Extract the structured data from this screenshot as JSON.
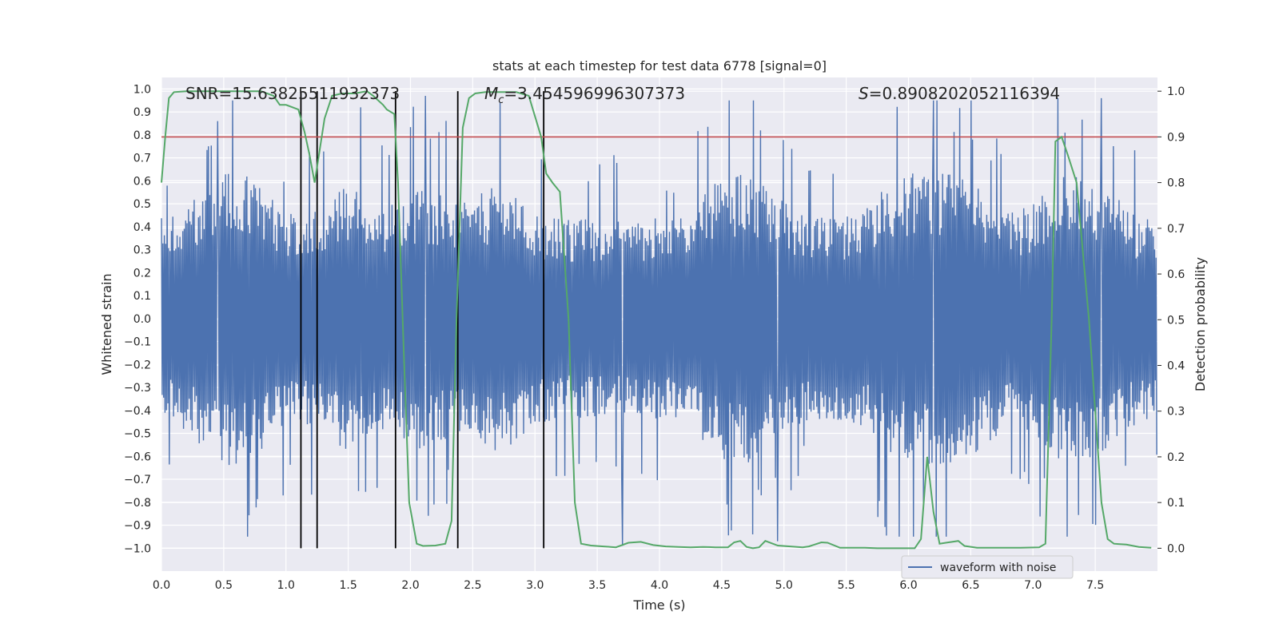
{
  "chart_data": {
    "type": "line",
    "title": "stats at each timestep for test data 6778 [signal=0]",
    "xlabel": "Time (s)",
    "ylabel": "Whitened strain",
    "y2label": "Detection probability",
    "xlim": [
      0.0,
      8.0
    ],
    "ylim": [
      -1.1,
      1.05
    ],
    "y2lim": [
      -0.05,
      1.03
    ],
    "x_ticks": [
      "0.0",
      "0.5",
      "1.0",
      "1.5",
      "2.0",
      "2.5",
      "3.0",
      "3.5",
      "4.0",
      "4.5",
      "5.0",
      "5.5",
      "6.0",
      "6.5",
      "7.0",
      "7.5"
    ],
    "y_ticks": [
      "1.0",
      "0.9",
      "0.8",
      "0.7",
      "0.6",
      "0.5",
      "0.4",
      "0.3",
      "0.2",
      "0.1",
      "0.0",
      "−0.1",
      "−0.2",
      "−0.3",
      "−0.4",
      "−0.5",
      "−0.6",
      "−0.7",
      "−0.8",
      "−0.9",
      "−1.0"
    ],
    "y2_ticks": [
      "1.0",
      "0.9",
      "0.8",
      "0.7",
      "0.6",
      "0.5",
      "0.4",
      "0.3",
      "0.2",
      "0.1",
      "0.0"
    ],
    "annotations": {
      "snr": "SNR=15.63825511932373",
      "mc_symbol": "M",
      "mc_sub": "c",
      "mc_value": "=3.454596996307373",
      "s_symbol": "S",
      "s_value": "=0.8908202052116394"
    },
    "legend": {
      "position": "lower-right",
      "entries": [
        "waveform with noise"
      ]
    },
    "threshold": {
      "y2": 0.9,
      "color": "#c44e52"
    },
    "vertical_lines": [
      1.12,
      1.25,
      1.88,
      2.38,
      3.07
    ],
    "waveform": {
      "name": "waveform with noise",
      "color": "#4c72b0",
      "n_samples": 1400,
      "envelope_peak_times": [
        0.45,
        0.7,
        1.5,
        2.1,
        2.7,
        4.5,
        4.8,
        5.9,
        6.2,
        6.5,
        7.2,
        7.5
      ],
      "peak_spikes": [
        {
          "t": 0.45,
          "v": 0.86
        },
        {
          "t": 1.6,
          "v": 0.92
        },
        {
          "t": 2.12,
          "v": 0.97
        },
        {
          "t": 2.72,
          "v": 0.94
        },
        {
          "t": 6.2,
          "v": 0.95
        },
        {
          "t": 6.5,
          "v": 0.95
        },
        {
          "t": 7.2,
          "v": 0.96
        },
        {
          "t": 7.55,
          "v": 0.96
        },
        {
          "t": 3.7,
          "v": -0.99
        },
        {
          "t": 4.95,
          "v": -0.97
        },
        {
          "t": 4.75,
          "v": -0.94
        }
      ]
    },
    "series": [
      {
        "name": "detection probability",
        "color": "#55a868",
        "x": [
          0.0,
          0.03,
          0.06,
          0.1,
          0.2,
          0.4,
          0.6,
          0.8,
          0.9,
          0.95,
          1.0,
          1.1,
          1.15,
          1.19,
          1.23,
          1.27,
          1.31,
          1.37,
          1.45,
          1.55,
          1.65,
          1.7,
          1.78,
          1.81,
          1.87,
          1.9,
          1.95,
          1.99,
          2.05,
          2.1,
          2.2,
          2.28,
          2.33,
          2.37,
          2.42,
          2.47,
          2.52,
          2.6,
          2.72,
          2.85,
          2.95,
          3.05,
          3.09,
          3.14,
          3.2,
          3.27,
          3.32,
          3.37,
          3.45,
          3.55,
          3.65,
          3.75,
          3.85,
          3.95,
          4.05,
          4.15,
          4.25,
          4.35,
          4.45,
          4.55,
          4.6,
          4.65,
          4.7,
          4.75,
          4.8,
          4.85,
          4.95,
          5.05,
          5.15,
          5.2,
          5.3,
          5.35,
          5.45,
          5.55,
          5.65,
          5.75,
          5.85,
          5.95,
          6.05,
          6.1,
          6.15,
          6.2,
          6.25,
          6.3,
          6.4,
          6.45,
          6.55,
          6.7,
          6.9,
          7.05,
          7.1,
          7.15,
          7.18,
          7.23,
          7.28,
          7.35,
          7.45,
          7.55,
          7.6,
          7.65,
          7.75,
          7.85,
          7.95
        ],
        "values": [
          0.8,
          0.9,
          0.985,
          0.998,
          1.0,
          1.0,
          1.0,
          1.0,
          0.99,
          0.97,
          0.97,
          0.96,
          0.91,
          0.86,
          0.8,
          0.87,
          0.94,
          0.99,
          0.995,
          0.995,
          1.0,
          0.99,
          0.97,
          0.96,
          0.95,
          0.8,
          0.4,
          0.1,
          0.01,
          0.005,
          0.006,
          0.01,
          0.06,
          0.5,
          0.92,
          0.985,
          0.995,
          0.998,
          0.998,
          0.998,
          0.99,
          0.9,
          0.82,
          0.8,
          0.78,
          0.5,
          0.1,
          0.01,
          0.006,
          0.004,
          0.002,
          0.012,
          0.014,
          0.007,
          0.004,
          0.003,
          0.002,
          0.003,
          0.002,
          0.002,
          0.013,
          0.016,
          0.003,
          0.0,
          0.002,
          0.016,
          0.006,
          0.004,
          0.002,
          0.004,
          0.013,
          0.012,
          0.001,
          0.001,
          0.001,
          0.0,
          0.0,
          0.0,
          0.0,
          0.02,
          0.2,
          0.08,
          0.01,
          0.012,
          0.016,
          0.005,
          0.001,
          0.001,
          0.001,
          0.002,
          0.01,
          0.5,
          0.89,
          0.9,
          0.86,
          0.8,
          0.5,
          0.1,
          0.02,
          0.01,
          0.008,
          0.003,
          0.001
        ]
      }
    ]
  }
}
